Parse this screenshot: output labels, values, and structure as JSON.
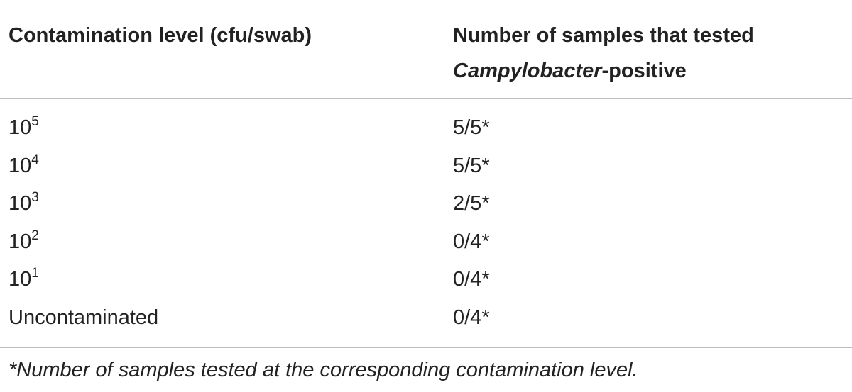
{
  "table": {
    "header": [
      [
        "Contamination level (cfu/swab)"
      ],
      [
        "Number of samples that tested",
        "Campylobacter",
        "-positive"
      ]
    ],
    "rows": [
      [
        {
          "base": "10",
          "sup": "5"
        },
        "5/5*"
      ],
      [
        {
          "base": "10",
          "sup": "4"
        },
        "5/5*"
      ],
      [
        {
          "base": "10",
          "sup": "3"
        },
        "2/5*"
      ],
      [
        {
          "base": "10",
          "sup": "2"
        },
        "0/4*"
      ],
      [
        {
          "base": "10",
          "sup": "1"
        },
        "0/4*"
      ],
      [
        "Uncontaminated",
        "0/4*"
      ]
    ],
    "footnote": {
      "mark": "*",
      "text": "Number of samples tested at the corresponding contamination level."
    }
  }
}
